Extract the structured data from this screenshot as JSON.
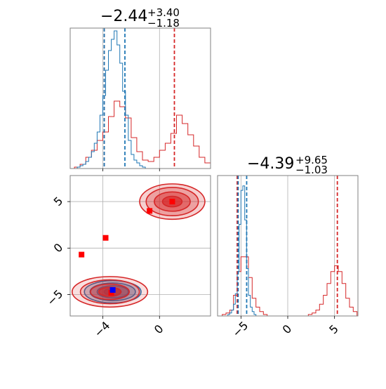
{
  "colors": {
    "blue": "#1f77b4",
    "red": "#d62728",
    "frame": "#808080",
    "grid": "#b0b0b0"
  },
  "chart_data": {
    "type": "corner",
    "parameters": [
      {
        "title_median": "−2.44",
        "title_plus": "+3.40",
        "title_minus": "−1.18",
        "range": [
          -6.3,
          3.6
        ],
        "ticks": [
          -4,
          0
        ],
        "tick_labels": [
          "−4",
          "0"
        ],
        "quantiles_blue": [
          -3.9,
          -2.44
        ],
        "quantiles_red": [
          -3.9,
          1.05
        ]
      },
      {
        "title_median": "−4.39",
        "title_plus": "+9.65",
        "title_minus": "−1.03",
        "range": [
          -7.5,
          7.5
        ],
        "ticks": [
          -5,
          0,
          5
        ],
        "tick_labels": [
          "−5",
          "0",
          "5"
        ],
        "quantiles_blue": [
          -5.3,
          -4.39
        ],
        "quantiles_red": [
          -5.4,
          5.3
        ]
      }
    ],
    "joint_ylim": [
      -7.3,
      7.8
    ],
    "joint_yticks": [
      -5,
      0,
      5
    ],
    "joint_ytick_labels": [
      "−5",
      "0",
      "5"
    ],
    "hist1_ylim": [
      0,
      100
    ],
    "hist2_ylim": [
      0,
      95
    ],
    "hist1_blue": {
      "edges": [
        -6.0,
        -5.8,
        -5.6,
        -5.4,
        -5.2,
        -5.0,
        -4.8,
        -4.6,
        -4.4,
        -4.2,
        -4.0,
        -3.8,
        -3.6,
        -3.4,
        -3.2,
        -3.0,
        -2.8,
        -2.6,
        -2.4,
        -2.2,
        -2.0,
        -1.8,
        -1.6,
        -1.4,
        -1.2,
        -1.0,
        -0.8
      ],
      "counts": [
        0,
        1,
        2,
        3,
        5,
        8,
        12,
        18,
        26,
        38,
        52,
        70,
        84,
        92,
        98,
        88,
        75,
        55,
        38,
        20,
        10,
        6,
        4,
        2,
        1,
        0
      ]
    },
    "hist1_red": {
      "edges": [
        -6.0,
        -5.6,
        -5.2,
        -4.8,
        -4.4,
        -4.0,
        -3.6,
        -3.2,
        -2.8,
        -2.4,
        -2.0,
        -1.6,
        -1.2,
        -0.8,
        -0.4,
        0.0,
        0.4,
        0.8,
        1.2,
        1.6,
        2.0,
        2.4,
        2.8,
        3.2,
        3.6
      ],
      "counts": [
        1,
        3,
        8,
        13,
        20,
        26,
        37,
        48,
        44,
        36,
        22,
        12,
        6,
        5,
        8,
        13,
        18,
        25,
        38,
        32,
        24,
        16,
        8,
        4
      ]
    },
    "hist2_blue": {
      "edges": [
        -6.4,
        -6.2,
        -6.0,
        -5.8,
        -5.6,
        -5.4,
        -5.2,
        -5.0,
        -4.8,
        -4.6,
        -4.4,
        -4.2,
        -4.0,
        -3.8,
        -3.6,
        -3.4
      ],
      "counts": [
        1,
        2,
        4,
        8,
        15,
        30,
        62,
        85,
        88,
        65,
        32,
        14,
        6,
        3,
        1
      ]
    },
    "hist2_red": {
      "edges": [
        -7.0,
        -6.6,
        -6.2,
        -5.8,
        -5.4,
        -5.0,
        -4.6,
        -4.2,
        -3.8,
        -3.4,
        -3.0,
        -2.6,
        -2.2,
        -1.8,
        -1.4,
        -1.0,
        -0.6,
        -0.2,
        0.2,
        0.6,
        1.0,
        1.4,
        1.8,
        2.2,
        2.6,
        3.0,
        3.4,
        3.8,
        4.2,
        4.6,
        5.0,
        5.4,
        5.8,
        6.2,
        6.6,
        7.0,
        7.4
      ],
      "counts": [
        1,
        2,
        4,
        14,
        30,
        40,
        40,
        26,
        12,
        6,
        3,
        1,
        0,
        0,
        0,
        0,
        0,
        0,
        0,
        0,
        0,
        0,
        0,
        1,
        2,
        4,
        8,
        14,
        22,
        30,
        34,
        30,
        22,
        12,
        6,
        3
      ]
    },
    "red_blob_top": {
      "center": [
        0.9,
        5.0
      ],
      "sd": [
        1.15,
        0.95
      ]
    },
    "red_blob_bottom": {
      "center": [
        -3.5,
        -4.7
      ],
      "sd": [
        1.3,
        0.8
      ]
    },
    "blue_blob": {
      "center": [
        -3.3,
        -4.7
      ],
      "sd": [
        1.0,
        0.6
      ]
    },
    "red_markers": [
      [
        0.9,
        5.0
      ],
      [
        -0.7,
        4.0
      ],
      [
        -3.8,
        1.1
      ],
      [
        -5.5,
        -0.7
      ],
      [
        -3.4,
        -4.8
      ]
    ],
    "blue_markers": [
      [
        -3.3,
        -4.5
      ]
    ]
  }
}
